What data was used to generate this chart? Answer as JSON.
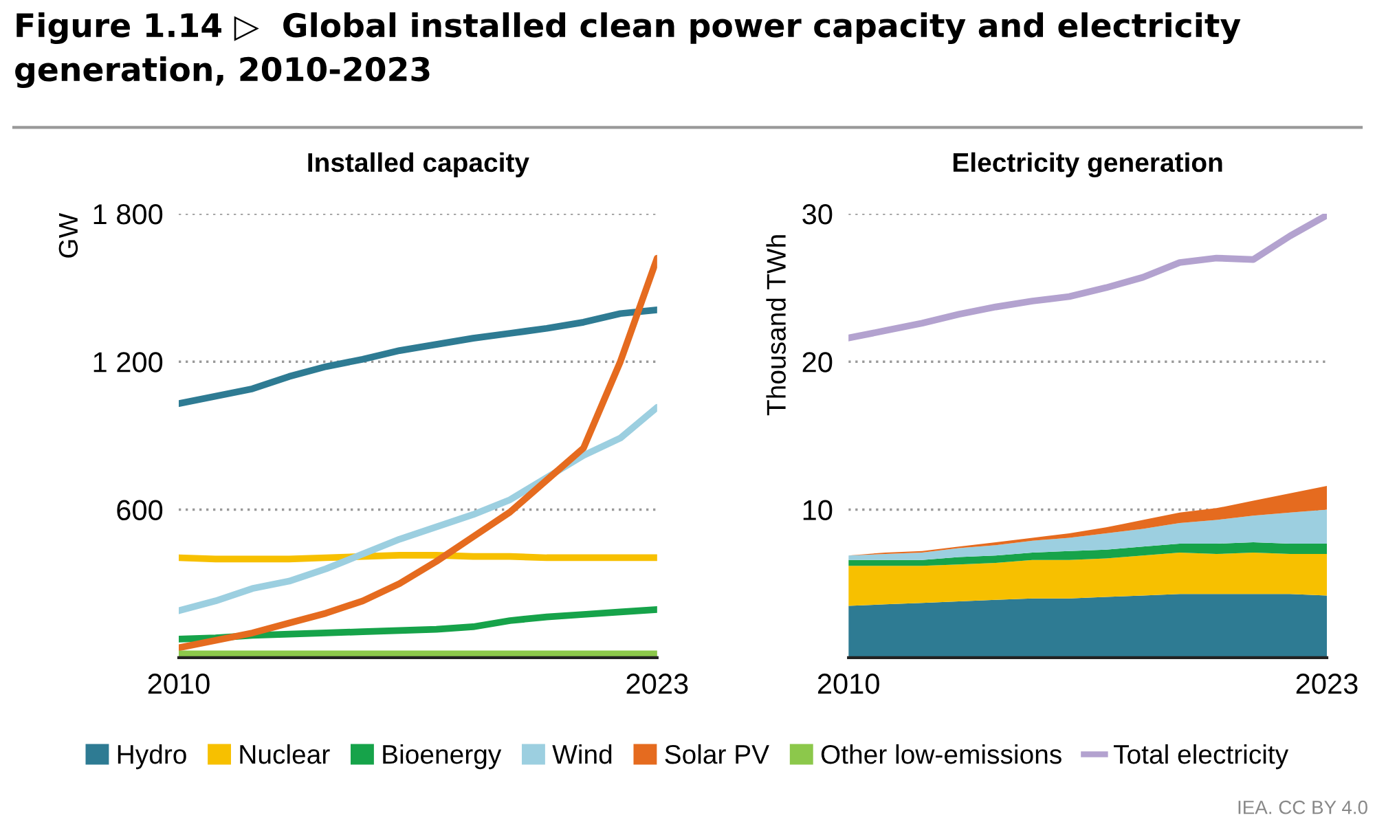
{
  "chart_data": [
    {
      "type": "line",
      "title": "Installed capacity",
      "ylabel": "GW",
      "x": [
        2010,
        2011,
        2012,
        2013,
        2014,
        2015,
        2016,
        2017,
        2018,
        2019,
        2020,
        2021,
        2022,
        2023
      ],
      "xlim": [
        2010,
        2023
      ],
      "xticks": [
        2010,
        2023
      ],
      "ylim": [
        0,
        1800
      ],
      "yticks": [
        {
          "value": 600,
          "label": "600"
        },
        {
          "value": 1200,
          "label": "1 200"
        },
        {
          "value": 1800,
          "label": "1 800"
        }
      ],
      "grid": "y",
      "legend": "bottom",
      "annotations": [
        "Figure 1.14 ▷  Global installed clean power capacity and electricity\ngeneration, 2010-2023"
      ],
      "series": [
        {
          "name": "Hydro",
          "color": "#2e7b93",
          "values": [
            1030,
            1060,
            1090,
            1140,
            1180,
            1210,
            1245,
            1270,
            1295,
            1315,
            1335,
            1360,
            1395,
            1410
          ]
        },
        {
          "name": "Nuclear",
          "color": "#f7c000",
          "values": [
            405,
            400,
            400,
            400,
            405,
            410,
            415,
            415,
            410,
            410,
            405,
            405,
            405,
            405
          ]
        },
        {
          "name": "Bioenergy",
          "color": "#16a34a",
          "values": [
            75,
            80,
            90,
            95,
            100,
            105,
            110,
            115,
            125,
            150,
            165,
            175,
            185,
            195
          ]
        },
        {
          "name": "Wind",
          "color": "#9ccfe0",
          "values": [
            190,
            230,
            280,
            310,
            360,
            420,
            480,
            530,
            580,
            640,
            730,
            820,
            890,
            1015
          ]
        },
        {
          "name": "Solar PV",
          "color": "#e56b1f",
          "values": [
            40,
            70,
            100,
            140,
            180,
            230,
            300,
            390,
            490,
            590,
            720,
            850,
            1200,
            1620
          ]
        },
        {
          "name": "Other low-emissions",
          "color": "#8cc84b",
          "values": [
            15,
            15,
            15,
            15,
            15,
            15,
            15,
            15,
            15,
            15,
            15,
            15,
            15,
            15
          ]
        }
      ]
    },
    {
      "type": "area",
      "stacked": true,
      "title": "Electricity generation",
      "ylabel": "Thousand TWh",
      "x": [
        2010,
        2011,
        2012,
        2013,
        2014,
        2015,
        2016,
        2017,
        2018,
        2019,
        2020,
        2021,
        2022,
        2023
      ],
      "xlim": [
        2010,
        2023
      ],
      "xticks": [
        2010,
        2023
      ],
      "ylim": [
        0,
        30
      ],
      "yticks": [
        10,
        20,
        30
      ],
      "grid": "y",
      "legend": "bottom",
      "annotations": [
        "IEA. CC BY 4.0"
      ],
      "series": [
        {
          "color": "#2e7b93",
          "values": [
            3.5,
            3.6,
            3.7,
            3.8,
            3.9,
            4.0,
            4.0,
            4.1,
            4.2,
            4.3,
            4.3,
            4.3,
            4.3,
            4.2
          ]
        },
        {
          "color": "#f7c000",
          "values": [
            2.7,
            2.6,
            2.5,
            2.5,
            2.5,
            2.6,
            2.6,
            2.6,
            2.7,
            2.8,
            2.7,
            2.8,
            2.7,
            2.8
          ]
        },
        {
          "color": "#16a34a",
          "values": [
            0.4,
            0.4,
            0.4,
            0.5,
            0.5,
            0.5,
            0.6,
            0.6,
            0.6,
            0.6,
            0.7,
            0.7,
            0.7,
            0.7
          ]
        },
        {
          "color": "#9ccfe0",
          "values": [
            0.3,
            0.4,
            0.5,
            0.6,
            0.7,
            0.8,
            0.9,
            1.1,
            1.2,
            1.4,
            1.6,
            1.8,
            2.1,
            2.3
          ]
        },
        {
          "color": "#e56b1f",
          "values": [
            0.0,
            0.1,
            0.1,
            0.1,
            0.2,
            0.2,
            0.3,
            0.4,
            0.6,
            0.7,
            0.8,
            1.0,
            1.3,
            1.6
          ]
        },
        {
          "name": "Total electricity",
          "type": "line",
          "color": "#b3a2cf",
          "values": [
            21.6,
            22.1,
            22.6,
            23.2,
            23.7,
            24.1,
            24.4,
            25.0,
            25.7,
            26.7,
            27.0,
            26.9,
            28.5,
            29.9
          ]
        }
      ]
    }
  ]
}
